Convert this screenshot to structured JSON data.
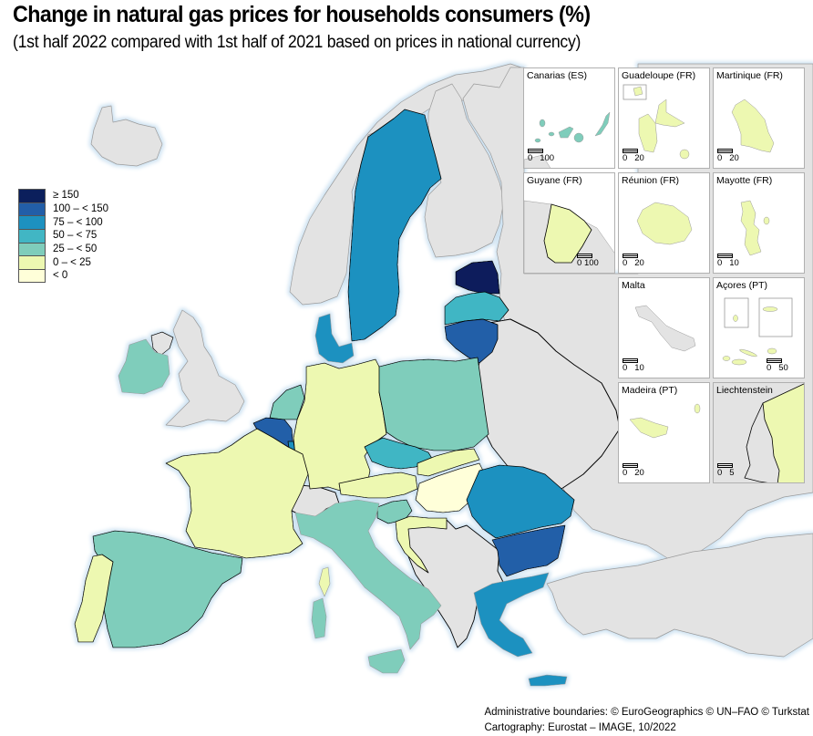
{
  "header": {
    "title": "Change in natural gas prices for households consumers (%)",
    "subtitle": "(1st half 2022 compared with 1st half of 2021 based on prices in national currency)"
  },
  "chart_data": {
    "type": "choropleth",
    "title": "Change in natural gas prices for households consumers (%)",
    "subtitle": "(1st half 2022 compared with 1st half of 2021 based on prices in national currency)",
    "legend_position": "left",
    "classes": [
      {
        "label": "≥ 150",
        "color": "#0b1f5c"
      },
      {
        "label": "100 – < 150",
        "color": "#225ea8"
      },
      {
        "label": "75 – < 100",
        "color": "#1d91c0"
      },
      {
        "label": "50 – < 75",
        "color": "#41b6c4"
      },
      {
        "label": "25 – < 50",
        "color": "#7fcdbb"
      },
      {
        "label": "0 – < 25",
        "color": "#edf8b1"
      },
      {
        "label": "< 0",
        "color": "#ffffd9"
      }
    ],
    "no_data_color": "#e3e3e3",
    "countries": [
      {
        "name": "Estonia",
        "class": "≥ 150"
      },
      {
        "name": "Lithuania",
        "class": "100 – < 150"
      },
      {
        "name": "Belgium",
        "class": "100 – < 150"
      },
      {
        "name": "Bulgaria",
        "class": "100 – < 150"
      },
      {
        "name": "Sweden",
        "class": "75 – < 100"
      },
      {
        "name": "Denmark",
        "class": "75 – < 100"
      },
      {
        "name": "Romania",
        "class": "75 – < 100"
      },
      {
        "name": "Greece",
        "class": "75 – < 100"
      },
      {
        "name": "Luxembourg",
        "class": "75 – < 100"
      },
      {
        "name": "Latvia",
        "class": "50 – < 75"
      },
      {
        "name": "Czechia",
        "class": "50 – < 75"
      },
      {
        "name": "Ireland",
        "class": "25 – < 50"
      },
      {
        "name": "Netherlands",
        "class": "25 – < 50"
      },
      {
        "name": "Poland",
        "class": "25 – < 50"
      },
      {
        "name": "Spain",
        "class": "25 – < 50"
      },
      {
        "name": "Italy",
        "class": "25 – < 50"
      },
      {
        "name": "Slovenia",
        "class": "25 – < 50"
      },
      {
        "name": "Germany",
        "class": "0 – < 25"
      },
      {
        "name": "France",
        "class": "0 – < 25"
      },
      {
        "name": "Portugal",
        "class": "0 – < 25"
      },
      {
        "name": "Austria",
        "class": "0 – < 25"
      },
      {
        "name": "Slovakia",
        "class": "0 – < 25"
      },
      {
        "name": "Croatia",
        "class": "0 – < 25"
      },
      {
        "name": "Liechtenstein",
        "class": "0 – < 25"
      },
      {
        "name": "Hungary",
        "class": "< 0"
      }
    ],
    "insets": [
      {
        "label": "Canarias (ES)",
        "scale": [
          "0",
          "100"
        ],
        "class": "25 – < 50"
      },
      {
        "label": "Guadeloupe (FR)",
        "scale": [
          "0",
          "20"
        ],
        "class": "0 – < 25"
      },
      {
        "label": "Martinique (FR)",
        "scale": [
          "0",
          "20"
        ],
        "class": "0 – < 25"
      },
      {
        "label": "Guyane (FR)",
        "scale": [
          "0",
          "100"
        ],
        "class": "0 – < 25"
      },
      {
        "label": "Réunion (FR)",
        "scale": [
          "0",
          "20"
        ],
        "class": "0 – < 25"
      },
      {
        "label": "Mayotte (FR)",
        "scale": [
          "0",
          "10"
        ],
        "class": "0 – < 25"
      },
      {
        "label": "Malta",
        "scale": [
          "0",
          "10"
        ],
        "class": "no data"
      },
      {
        "label": "Açores (PT)",
        "scale": [
          "0",
          "50"
        ],
        "class": "0 – < 25"
      },
      {
        "label": "Madeira (PT)",
        "scale": [
          "0",
          "20"
        ],
        "class": "0 – < 25"
      },
      {
        "label": "Liechtenstein",
        "scale": [
          "0",
          "5"
        ],
        "class": "0 – < 25"
      }
    ]
  },
  "credits": {
    "line1": "Administrative boundaries: © EuroGeographics © UN–FAO © Turkstat",
    "line2": "Cartography: Eurostat – IMAGE, 10/2022"
  }
}
